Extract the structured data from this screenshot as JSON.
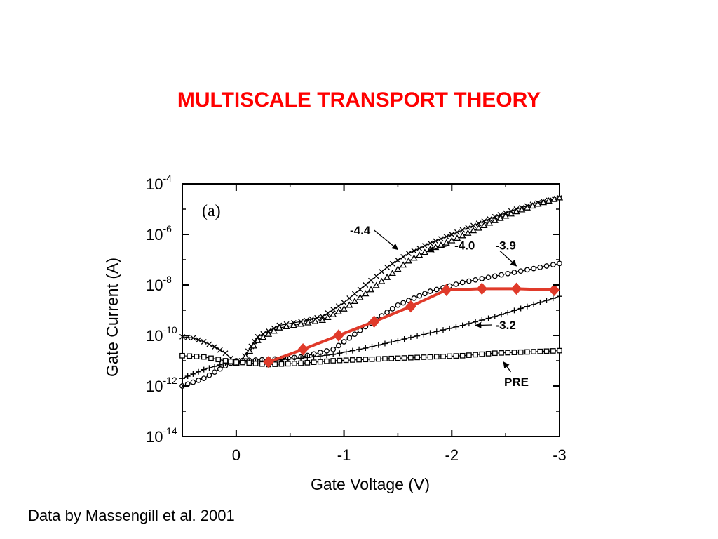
{
  "slide": {
    "title": "MULTISCALE TRANSPORT THEORY",
    "caption": "Data by Massengill et al. 2001",
    "title_color": "#ff0000"
  },
  "chart_data": {
    "type": "line",
    "panel_label": "(a)",
    "xlabel": "Gate Voltage (V)",
    "ylabel": "Gate Current (A)",
    "xlim": [
      0.5,
      -3
    ],
    "y_scale": "log",
    "ylim": [
      1e-14,
      0.0001
    ],
    "x_ticks": [
      {
        "value": 0,
        "label": "0"
      },
      {
        "value": -1,
        "label": "-1"
      },
      {
        "value": -2,
        "label": "-2"
      },
      {
        "value": -3,
        "label": "-3"
      }
    ],
    "y_ticks": [
      {
        "exp": -4,
        "base": "10",
        "sup": "-4"
      },
      {
        "exp": -6,
        "base": "10",
        "sup": "-6"
      },
      {
        "exp": -8,
        "base": "10",
        "sup": "-8"
      },
      {
        "exp": -10,
        "base": "10",
        "sup": "-10"
      },
      {
        "exp": -12,
        "base": "10",
        "sup": "-12"
      },
      {
        "exp": -14,
        "base": "10",
        "sup": "-14"
      }
    ],
    "annotations": [
      {
        "text": "-4.4",
        "x": -1.15,
        "y_exp": -6.0
      },
      {
        "text": "-4.0",
        "x": -2.12,
        "y_exp": -6.6
      },
      {
        "text": "-3.9",
        "x": -2.5,
        "y_exp": -6.6
      },
      {
        "text": "-3.2",
        "x": -2.5,
        "y_exp": -9.75
      },
      {
        "text": "PRE",
        "x": -2.6,
        "y_exp": -12.0
      }
    ],
    "series": [
      {
        "name": "-4.4",
        "marker": "x",
        "color": "#000000",
        "x": [
          0.5,
          0.4,
          0.3,
          0.2,
          0.1,
          0.0,
          -0.05,
          -0.2,
          -0.4,
          -0.6,
          -0.8,
          -1.0,
          -1.2,
          -1.4,
          -1.6,
          -1.8,
          -2.0,
          -2.2,
          -2.4,
          -2.6,
          -2.8,
          -3.0
        ],
        "y_exp": [
          -10.05,
          -10.1,
          -10.25,
          -10.45,
          -10.7,
          -11.1,
          -11.0,
          -10.05,
          -9.6,
          -9.45,
          -9.25,
          -8.7,
          -8.0,
          -7.3,
          -6.75,
          -6.35,
          -6.0,
          -5.65,
          -5.3,
          -5.0,
          -4.75,
          -4.55
        ]
      },
      {
        "name": "-4.0",
        "marker": "triangle",
        "color": "#000000",
        "x": [
          0.0,
          -0.05,
          -0.2,
          -0.4,
          -0.6,
          -0.8,
          -1.0,
          -1.2,
          -1.4,
          -1.6,
          -1.8,
          -2.0,
          -2.2,
          -2.4,
          -2.6,
          -2.8,
          -3.0
        ],
        "y_exp": [
          -11.1,
          -11.05,
          -10.2,
          -9.7,
          -9.55,
          -9.4,
          -8.95,
          -8.35,
          -7.7,
          -7.05,
          -6.6,
          -6.25,
          -5.85,
          -5.45,
          -5.1,
          -4.8,
          -4.55
        ]
      },
      {
        "name": "-3.9",
        "marker": "circle",
        "color": "#000000",
        "x": [
          0.5,
          0.3,
          0.1,
          0.0,
          -0.3,
          -0.6,
          -0.9,
          -1.2,
          -1.5,
          -1.8,
          -2.1,
          -2.4,
          -2.7,
          -3.0
        ],
        "y_exp": [
          -12.0,
          -11.7,
          -11.2,
          -11.0,
          -10.95,
          -10.85,
          -10.55,
          -9.65,
          -8.8,
          -8.25,
          -7.9,
          -7.65,
          -7.4,
          -7.15
        ]
      },
      {
        "name": "-3.2",
        "marker": "plus",
        "color": "#000000",
        "x": [
          0.5,
          0.3,
          0.1,
          0.0,
          -0.3,
          -0.6,
          -0.9,
          -1.2,
          -1.5,
          -1.8,
          -2.1,
          -2.4,
          -2.7,
          -3.0
        ],
        "y_exp": [
          -11.7,
          -11.35,
          -11.1,
          -11.05,
          -11.0,
          -10.9,
          -10.75,
          -10.5,
          -10.2,
          -9.9,
          -9.6,
          -9.25,
          -8.85,
          -8.45
        ]
      },
      {
        "name": "PRE",
        "marker": "square",
        "color": "#000000",
        "x": [
          0.5,
          0.3,
          0.1,
          0.0,
          -0.3,
          -0.6,
          -0.9,
          -1.2,
          -1.5,
          -1.8,
          -2.1,
          -2.4,
          -2.7,
          -3.0
        ],
        "y_exp": [
          -10.8,
          -10.85,
          -11.0,
          -11.05,
          -11.15,
          -11.1,
          -11.0,
          -10.95,
          -10.9,
          -10.85,
          -10.8,
          -10.7,
          -10.65,
          -10.6
        ]
      },
      {
        "name": "",
        "marker": "diamond",
        "color": "#e03a2a",
        "x": [
          -0.3,
          -0.62,
          -0.95,
          -1.28,
          -1.62,
          -1.95,
          -2.28,
          -2.6,
          -2.95
        ],
        "y_exp": [
          -11.05,
          -10.55,
          -10.0,
          -9.45,
          -8.85,
          -8.2,
          -8.15,
          -8.15,
          -8.2
        ]
      }
    ]
  }
}
